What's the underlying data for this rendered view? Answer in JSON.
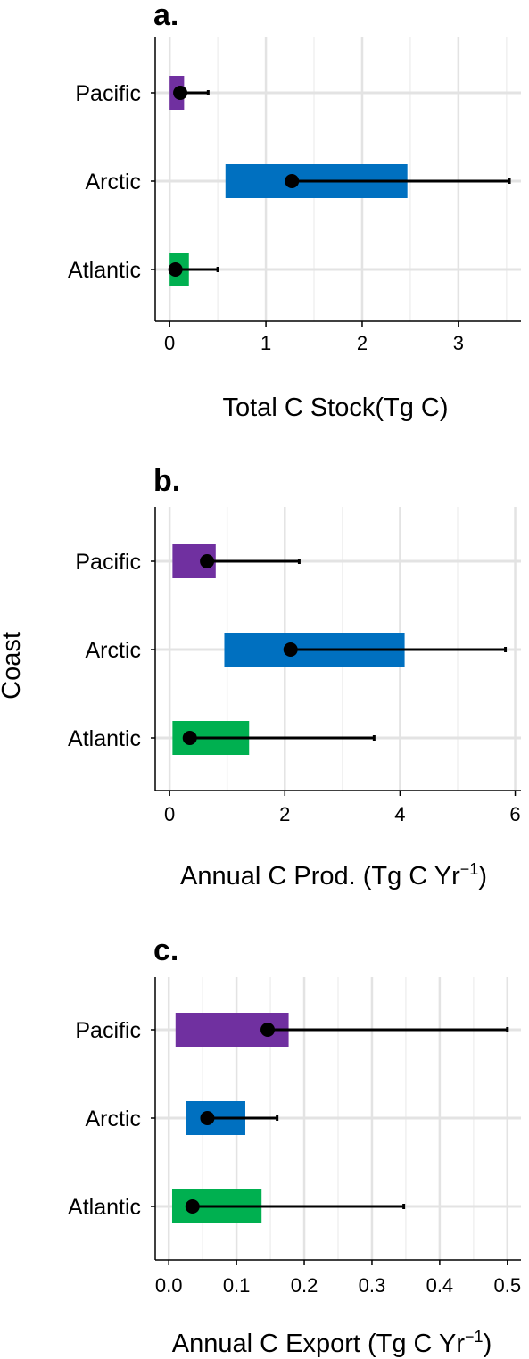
{
  "y_axis_label": "Coast",
  "chart_data": [
    {
      "type": "bar",
      "panel": "a.",
      "xlabel": "Total C Stock(Tg C)",
      "xlabel_sup": "",
      "xlabel_tail": "",
      "categories": [
        "Pacific",
        "Arctic",
        "Atlantic"
      ],
      "colors": [
        "#7030a0",
        "#0070c0",
        "#00b050"
      ],
      "bar_low": [
        0.0,
        0.58,
        0.0
      ],
      "bar_high": [
        0.15,
        2.47,
        0.2
      ],
      "point": [
        0.11,
        1.27,
        0.06
      ],
      "err_high": [
        0.4,
        3.53,
        0.5
      ],
      "xlim": [
        -0.15,
        3.65
      ],
      "ticks": [
        0,
        1,
        2,
        3
      ],
      "tick_labels": [
        "0",
        "1",
        "2",
        "3"
      ],
      "minor_ticks": [
        0.5,
        1.5,
        2.5,
        3.5
      ],
      "grid": true
    },
    {
      "type": "bar",
      "panel": "b.",
      "xlabel": "Annual C Prod. (Tg C Yr",
      "xlabel_sup": "−1",
      "xlabel_tail": ")",
      "categories": [
        "Pacific",
        "Arctic",
        "Atlantic"
      ],
      "colors": [
        "#7030a0",
        "#0070c0",
        "#00b050"
      ],
      "bar_low": [
        0.05,
        0.95,
        0.05
      ],
      "bar_high": [
        0.8,
        4.08,
        1.38
      ],
      "point": [
        0.65,
        2.1,
        0.35
      ],
      "err_high": [
        2.25,
        5.83,
        3.55
      ],
      "xlim": [
        -0.25,
        6.1
      ],
      "ticks": [
        0,
        2,
        4,
        6
      ],
      "tick_labels": [
        "0",
        "2",
        "4",
        "6"
      ],
      "minor_ticks": [
        1,
        3,
        5
      ],
      "grid": true
    },
    {
      "type": "bar",
      "panel": "c.",
      "xlabel": "Annual C Export (Tg C Yr",
      "xlabel_sup": "−1",
      "xlabel_tail": ")",
      "categories": [
        "Pacific",
        "Arctic",
        "Atlantic"
      ],
      "colors": [
        "#7030a0",
        "#0070c0",
        "#00b050"
      ],
      "bar_low": [
        0.01,
        0.025,
        0.005
      ],
      "bar_high": [
        0.177,
        0.113,
        0.137
      ],
      "point": [
        0.146,
        0.057,
        0.035
      ],
      "err_high": [
        0.5,
        0.16,
        0.347
      ],
      "xlim": [
        -0.02,
        0.52
      ],
      "ticks": [
        0,
        0.1,
        0.2,
        0.3,
        0.4,
        0.5
      ],
      "tick_labels": [
        "0.0",
        "0.1",
        "0.2",
        "0.3",
        "0.4",
        "0.5"
      ],
      "minor_ticks": [
        0.05,
        0.15,
        0.25,
        0.35,
        0.45
      ],
      "grid": true
    }
  ]
}
